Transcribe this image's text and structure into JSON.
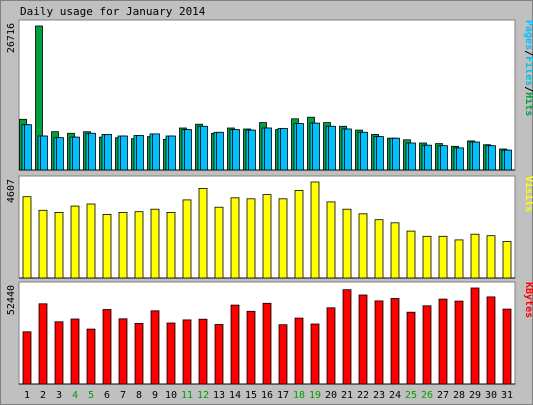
{
  "chart_data": {
    "type": "bar",
    "title": "Daily usage for January 2014",
    "categories": [
      "1",
      "2",
      "3",
      "4",
      "5",
      "6",
      "7",
      "8",
      "9",
      "10",
      "11",
      "12",
      "13",
      "14",
      "15",
      "16",
      "17",
      "18",
      "19",
      "20",
      "21",
      "22",
      "23",
      "24",
      "25",
      "26",
      "27",
      "28",
      "29",
      "30",
      "31"
    ],
    "weekend_days": [
      "4",
      "5",
      "11",
      "12",
      "18",
      "19",
      "25",
      "26"
    ],
    "panels": [
      {
        "id": "hits",
        "max_label": "26716",
        "side_label": {
          "parts": [
            "Pages",
            "/",
            "Files",
            "/",
            "Hits"
          ]
        },
        "series": [
          {
            "name": "Hits",
            "color": "#00a040",
            "values": [
              9400,
              26716,
              7100,
              6800,
              7100,
              6100,
              6000,
              5800,
              6200,
              5700,
              7800,
              8500,
              6800,
              7800,
              7600,
              8800,
              7500,
              9500,
              9800,
              8800,
              8100,
              7400,
              6600,
              5900,
              5600,
              5000,
              4900,
              4400,
              5400,
              4700,
              3900
            ]
          },
          {
            "name": "Files",
            "color": "#00c0e0",
            "values": [
              8400,
              6300,
              6000,
              6100,
              6800,
              6600,
              6300,
              6400,
              6700,
              6300,
              7500,
              8100,
              7000,
              7500,
              7400,
              7800,
              7700,
              8600,
              8700,
              8100,
              7600,
              7000,
              6200,
              5900,
              5000,
              4600,
              4500,
              4100,
              5200,
              4500,
              3700
            ]
          },
          {
            "name": "Pages",
            "color": "#00c0ff",
            "values": [
              8400,
              6300,
              6000,
              6100,
              6800,
              6600,
              6300,
              6400,
              6700,
              6300,
              7500,
              8100,
              7000,
              7500,
              7400,
              7800,
              7700,
              8600,
              8700,
              8100,
              7600,
              7000,
              6200,
              5900,
              5000,
              4600,
              4500,
              4100,
              5200,
              4500,
              3700
            ]
          }
        ]
      },
      {
        "id": "visits",
        "max_label": "4607",
        "side_label": {
          "parts": [
            "Visits"
          ]
        },
        "series": [
          {
            "name": "Visits",
            "color": "#ffff00",
            "values": [
              3900,
              3250,
              3150,
              3450,
              3550,
              3050,
              3150,
              3180,
              3300,
              3150,
              3750,
              4300,
              3400,
              3850,
              3800,
              4000,
              3800,
              4200,
              4607,
              3650,
              3300,
              3080,
              2800,
              2650,
              2250,
              2000,
              2000,
              1830,
              2100,
              2030,
              1750
            ]
          }
        ]
      },
      {
        "id": "kbytes",
        "max_label": "52440",
        "side_label": {
          "parts": [
            "KBytes"
          ]
        },
        "series": [
          {
            "name": "KBytes",
            "color": "#ff0000",
            "values": [
              28500,
              43800,
              34000,
              35500,
              30000,
              40700,
              35600,
              33100,
              40000,
              33300,
              35000,
              35400,
              32500,
              43100,
              39700,
              44100,
              32400,
              36000,
              32800,
              41600,
              51500,
              48600,
              45400,
              46700,
              39200,
              42700,
              46400,
              45300,
              52440,
              47600,
              40900
            ]
          }
        ]
      }
    ]
  },
  "colors": {
    "background": "#c0c0c0",
    "panel": "#ffffff",
    "text": "#000000",
    "weekend": "#00a000",
    "side_label_colors": {
      "Pages": "#00c0ff",
      "Files": "#00c0e0",
      "Hits": "#00a040",
      "/": "#000000",
      "Visits": "#ffff00",
      "KBytes": "#ff0000"
    }
  }
}
